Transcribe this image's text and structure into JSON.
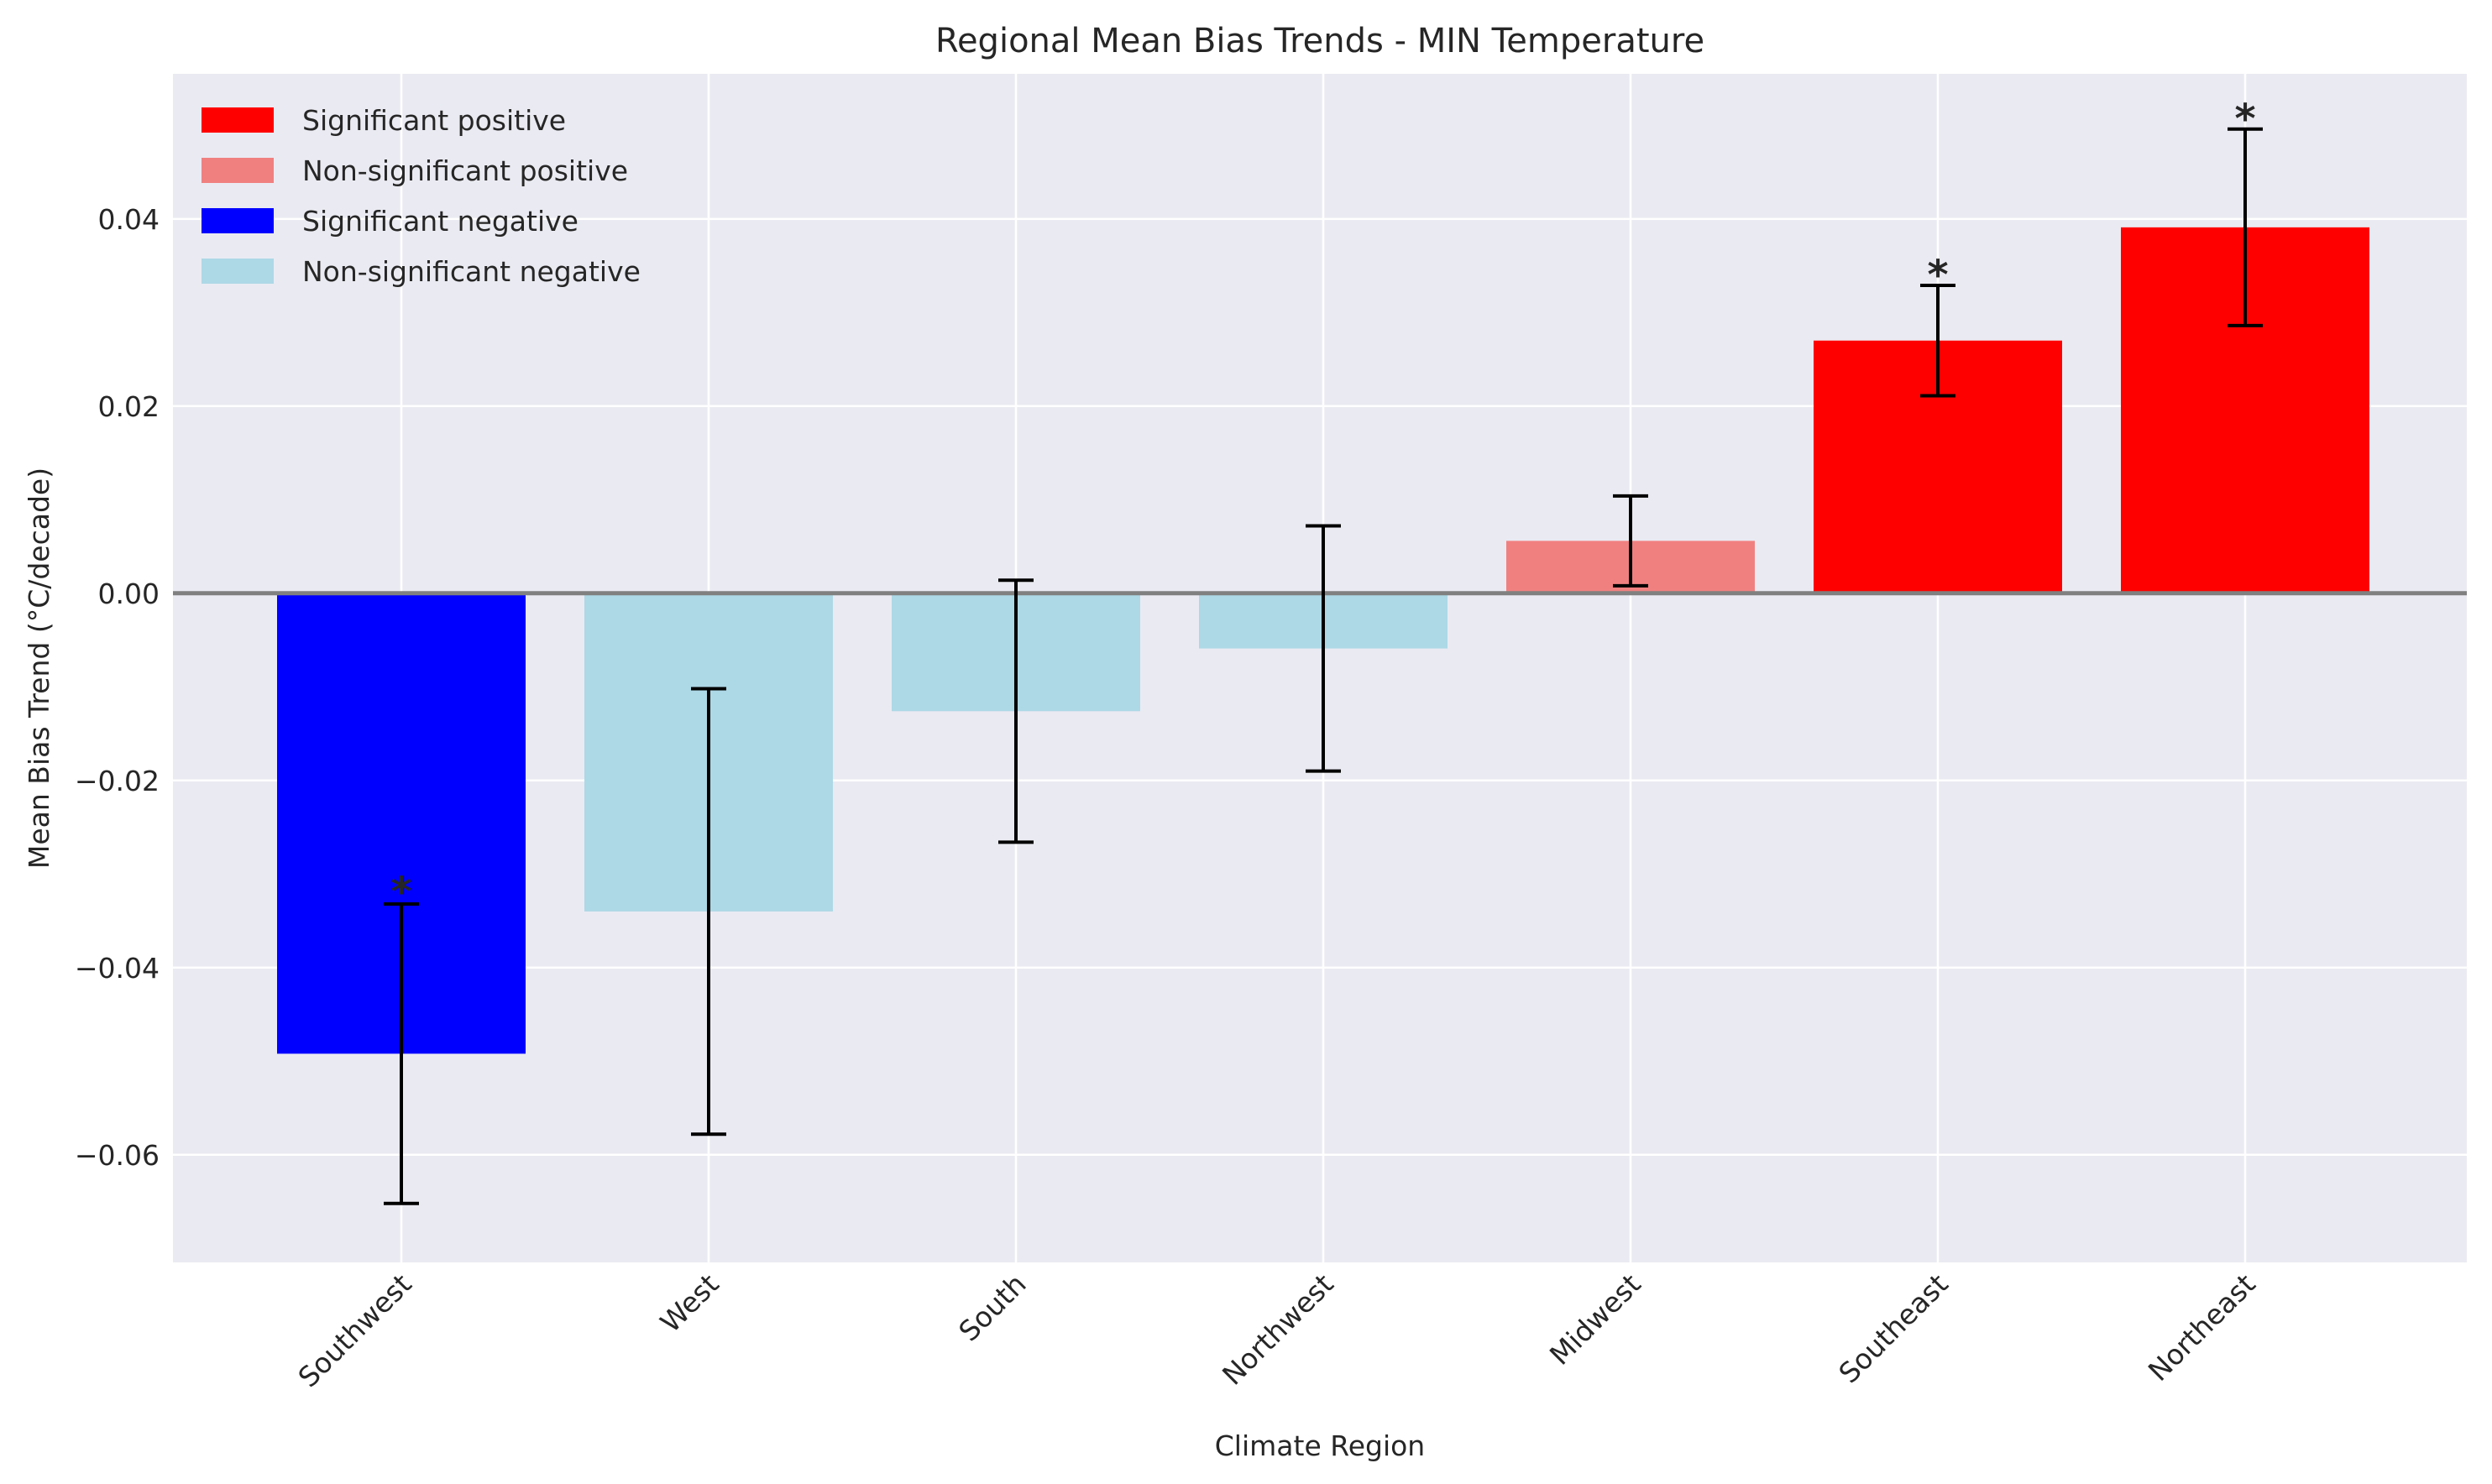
{
  "chart_data": {
    "type": "bar",
    "title": "Regional Mean Bias Trends - MIN Temperature",
    "xlabel": "Climate Region",
    "ylabel": "Mean Bias Trend (°C/decade)",
    "ylim": [
      -0.0715,
      0.0555
    ],
    "yticks": [
      -0.06,
      -0.04,
      -0.02,
      0.0,
      0.02,
      0.04
    ],
    "ytick_labels": [
      "−0.06",
      "−0.04",
      "−0.02",
      "0.00",
      "0.02",
      "0.04"
    ],
    "grid": true,
    "legend_position": "top-left",
    "reference_line": 0,
    "significance_marker": "*",
    "categories": [
      "Southwest",
      "West",
      "South",
      "Northwest",
      "Midwest",
      "Southeast",
      "Northeast"
    ],
    "values": [
      -0.0492,
      -0.034,
      -0.0126,
      -0.0059,
      0.0056,
      0.027,
      0.0391
    ],
    "errors": [
      0.016,
      0.0238,
      0.014,
      0.0131,
      0.0048,
      0.0059,
      0.0105
    ],
    "classes": [
      "sig_neg",
      "nonsig_neg",
      "nonsig_neg",
      "nonsig_neg",
      "nonsig_pos",
      "sig_pos",
      "sig_pos"
    ],
    "significant": [
      true,
      false,
      false,
      false,
      false,
      true,
      true
    ],
    "legend": [
      {
        "key": "sig_pos",
        "label": "Significant positive",
        "color": "#ff0000"
      },
      {
        "key": "nonsig_pos",
        "label": "Non-significant positive",
        "color": "#f08080"
      },
      {
        "key": "sig_neg",
        "label": "Significant negative",
        "color": "#0000ff"
      },
      {
        "key": "nonsig_neg",
        "label": "Non-significant negative",
        "color": "#add8e6"
      }
    ],
    "colors": {
      "plot_background": "#eaeaf2",
      "grid": "#ffffff",
      "zero_line": "#808080",
      "error_bar": "#000000",
      "text": "#262626"
    }
  }
}
